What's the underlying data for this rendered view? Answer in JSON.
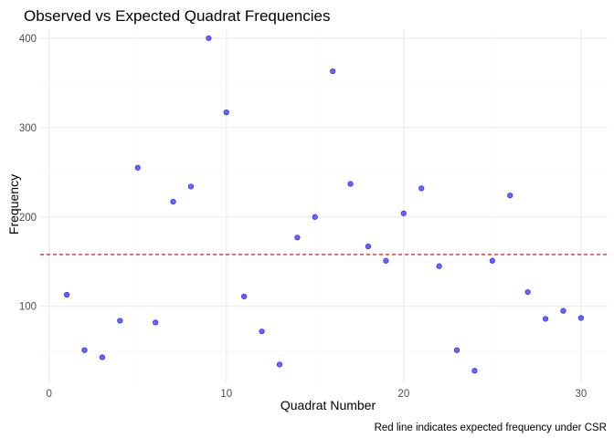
{
  "chart_data": {
    "type": "scatter",
    "title": "Observed vs Expected Quadrat Frequencies",
    "xlabel": "Quadrat Number",
    "ylabel": "Frequency",
    "caption": "Red line indicates expected frequency under CSR",
    "xlim": [
      -0.5,
      31.5
    ],
    "ylim": [
      14,
      410
    ],
    "x_ticks": [
      0,
      10,
      20,
      30
    ],
    "y_ticks": [
      100,
      200,
      300,
      400
    ],
    "grid": true,
    "expected_frequency": 158,
    "point_color": "#0000FF",
    "line_color": "#CC0000",
    "x": [
      1,
      2,
      3,
      4,
      5,
      6,
      7,
      8,
      9,
      10,
      11,
      12,
      13,
      14,
      15,
      16,
      17,
      18,
      19,
      20,
      21,
      22,
      23,
      24,
      25,
      26,
      27,
      28,
      29,
      30
    ],
    "y": [
      113,
      51,
      43,
      84,
      255,
      82,
      217,
      234,
      400,
      317,
      111,
      72,
      35,
      177,
      200,
      363,
      237,
      167,
      151,
      204,
      232,
      145,
      51,
      28,
      151,
      224,
      116,
      86,
      95,
      87
    ]
  }
}
